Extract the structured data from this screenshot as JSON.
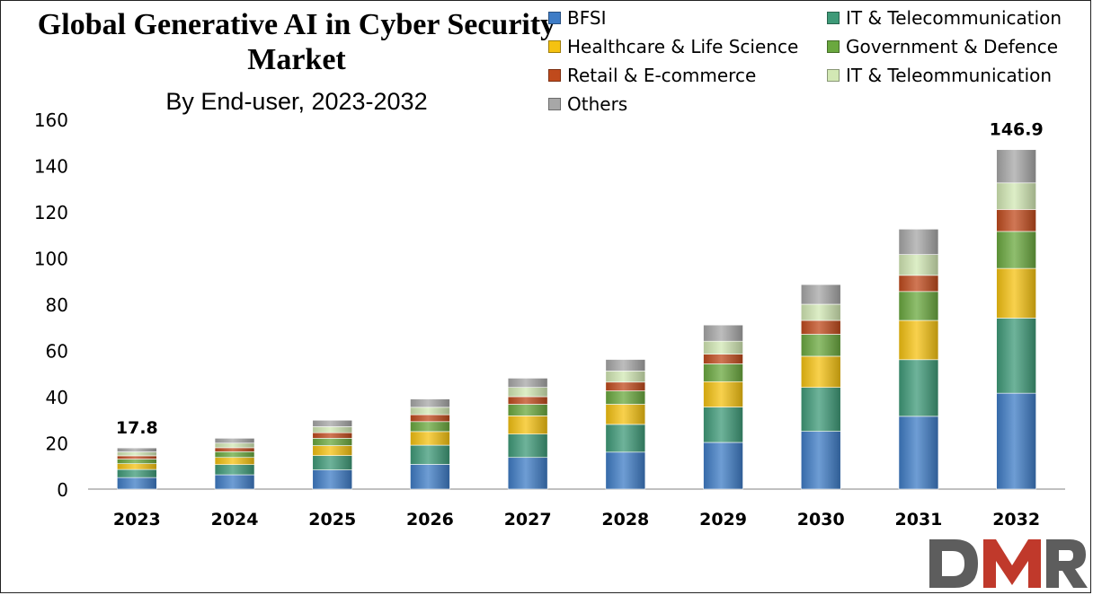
{
  "title": "Global Generative AI in Cyber Security Market",
  "subtitle": "By End-user, 2023-2032",
  "logo_text": "DMR",
  "colors": {
    "BFSI": "#3E7CC6",
    "IT & Telecommunication": "#3E9A78",
    "Healthcare & Life Science": "#F5C211",
    "Government & Defence": "#6AA83E",
    "Retail & E-commerce": "#C04A1C",
    "IT & Teleommunication": "#D2E8B4",
    "Others": "#A7A7A7"
  },
  "chart_data": {
    "type": "bar",
    "stacked": true,
    "title": "Global Generative AI in Cyber Security Market",
    "subtitle": "By End-user, 2023-2032",
    "categories": [
      "2023",
      "2024",
      "2025",
      "2026",
      "2027",
      "2028",
      "2029",
      "2030",
      "2031",
      "2032"
    ],
    "ylim": [
      0,
      160
    ],
    "yticks": [
      0,
      20,
      40,
      60,
      80,
      100,
      120,
      140,
      160
    ],
    "grid": false,
    "legend_position": "top-right",
    "series": [
      {
        "name": "BFSI",
        "values": [
          5.0,
          6.2,
          8.3,
          10.7,
          13.7,
          16.0,
          20.2,
          25.0,
          31.5,
          41.5
        ]
      },
      {
        "name": "IT & Telecommunication",
        "values": [
          3.5,
          4.4,
          6.2,
          8.3,
          10.1,
          12.0,
          15.3,
          19.0,
          24.5,
          32.5
        ]
      },
      {
        "name": "Healthcare & Life Science",
        "values": [
          2.5,
          3.1,
          4.3,
          5.9,
          7.9,
          8.7,
          11.0,
          13.5,
          17.0,
          21.5
        ]
      },
      {
        "name": "Government & Defence",
        "values": [
          2.0,
          2.5,
          3.2,
          4.3,
          5.0,
          5.8,
          7.7,
          9.5,
          12.5,
          16.0
        ]
      },
      {
        "name": "Retail & E-commerce",
        "values": [
          1.4,
          1.7,
          2.4,
          3.0,
          3.3,
          3.8,
          4.2,
          6.0,
          7.0,
          9.5
        ]
      },
      {
        "name": "IT & Teleommunication",
        "values": [
          1.7,
          2.0,
          2.6,
          3.2,
          4.0,
          4.8,
          5.6,
          7.0,
          9.0,
          11.5
        ]
      },
      {
        "name": "Others",
        "values": [
          1.7,
          2.1,
          2.8,
          3.6,
          4.0,
          5.0,
          7.0,
          8.5,
          11.0,
          14.4
        ]
      }
    ],
    "data_labels": [
      {
        "category": "2023",
        "text": "17.8"
      },
      {
        "category": "2032",
        "text": "146.9"
      }
    ]
  }
}
